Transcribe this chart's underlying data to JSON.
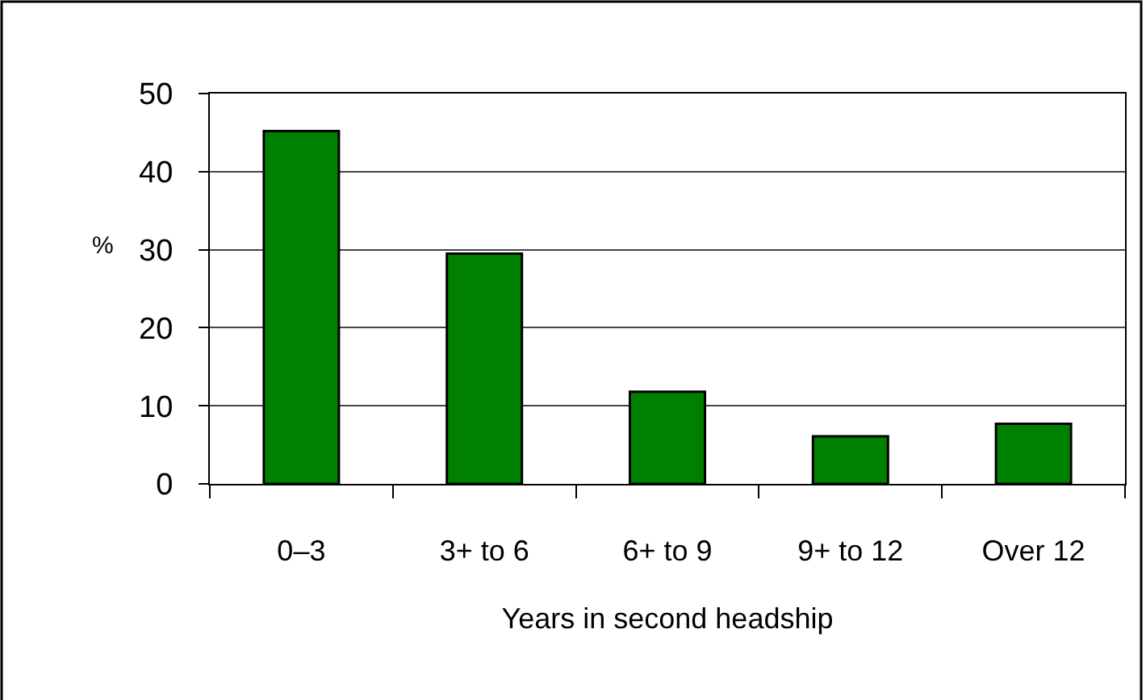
{
  "chart_data": {
    "type": "bar",
    "xlabel": "Years in second headship",
    "ylabel": "%",
    "categories": [
      "0–3",
      "3+ to 6",
      "6+ to 9",
      "9+ to 12",
      "Over 12"
    ],
    "values": [
      45.2,
      29.5,
      11.8,
      6.1,
      7.7
    ],
    "color": "#008000",
    "ylim": [
      0,
      50
    ],
    "yticks": [
      0,
      10,
      20,
      30,
      40,
      50
    ],
    "grid": "y"
  }
}
